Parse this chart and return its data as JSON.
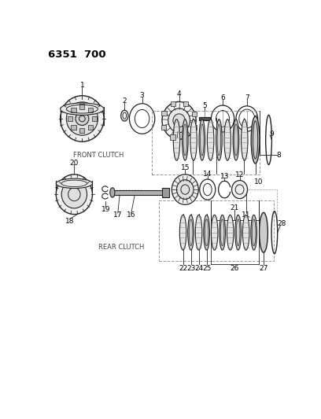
{
  "title": "6351  700",
  "background_color": "#ffffff",
  "text_color": "#000000",
  "front_clutch_label": "FRONT CLUTCH",
  "rear_clutch_label": "REAR CLUTCH",
  "line_color": "#222222",
  "dashed_color": "#888888"
}
